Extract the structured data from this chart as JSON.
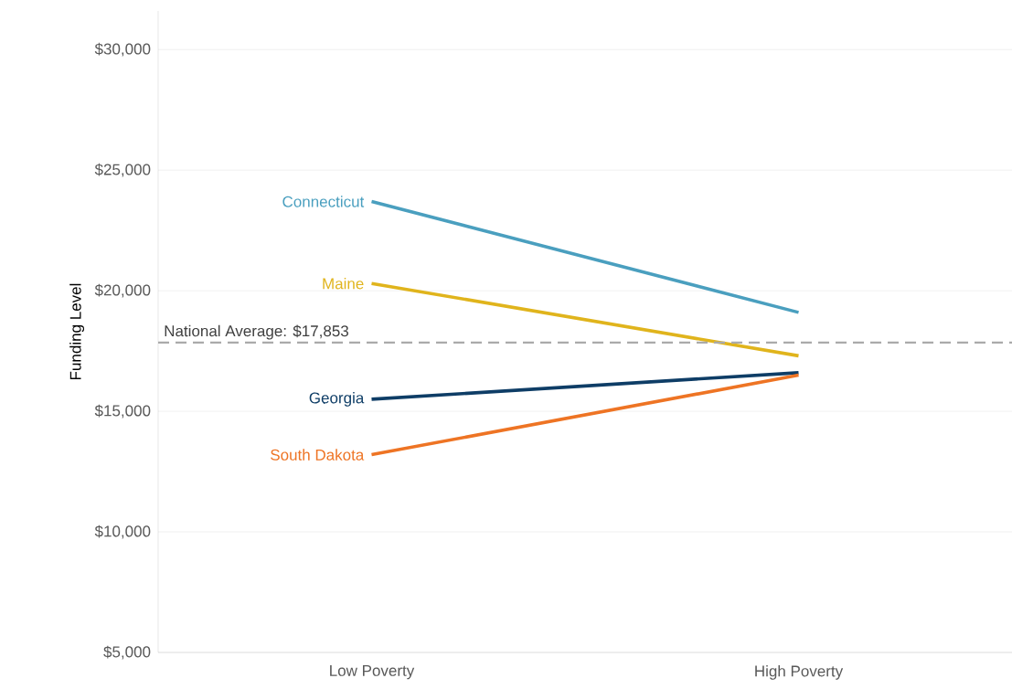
{
  "chart_data": {
    "type": "line",
    "categories": [
      "Low Poverty",
      "High Poverty"
    ],
    "ylabel": "Funding Level",
    "ylim": [
      5000,
      31600
    ],
    "yticks": [
      {
        "value": 5000,
        "label": "$5,000"
      },
      {
        "value": 10000,
        "label": "$10,000"
      },
      {
        "value": 15000,
        "label": "$15,000"
      },
      {
        "value": 20000,
        "label": "$20,000"
      },
      {
        "value": 25000,
        "label": "$25,000"
      },
      {
        "value": 30000,
        "label": "$30,000"
      }
    ],
    "grid": "y",
    "series": [
      {
        "name": "Connecticut",
        "color": "#4a9fbf",
        "values": [
          23700,
          19100
        ]
      },
      {
        "name": "Maine",
        "color": "#e0b41c",
        "values": [
          20300,
          17300
        ]
      },
      {
        "name": "Georgia",
        "color": "#0e3d66",
        "values": [
          15500,
          16600
        ]
      },
      {
        "name": "South Dakota",
        "color": "#ee7424",
        "values": [
          13200,
          16500
        ]
      }
    ],
    "ref_lines": [
      {
        "axis": "y",
        "value": 17853,
        "label": "National Average: $17,853",
        "color": "#aaaaaa",
        "line_style": "dashed"
      }
    ]
  }
}
